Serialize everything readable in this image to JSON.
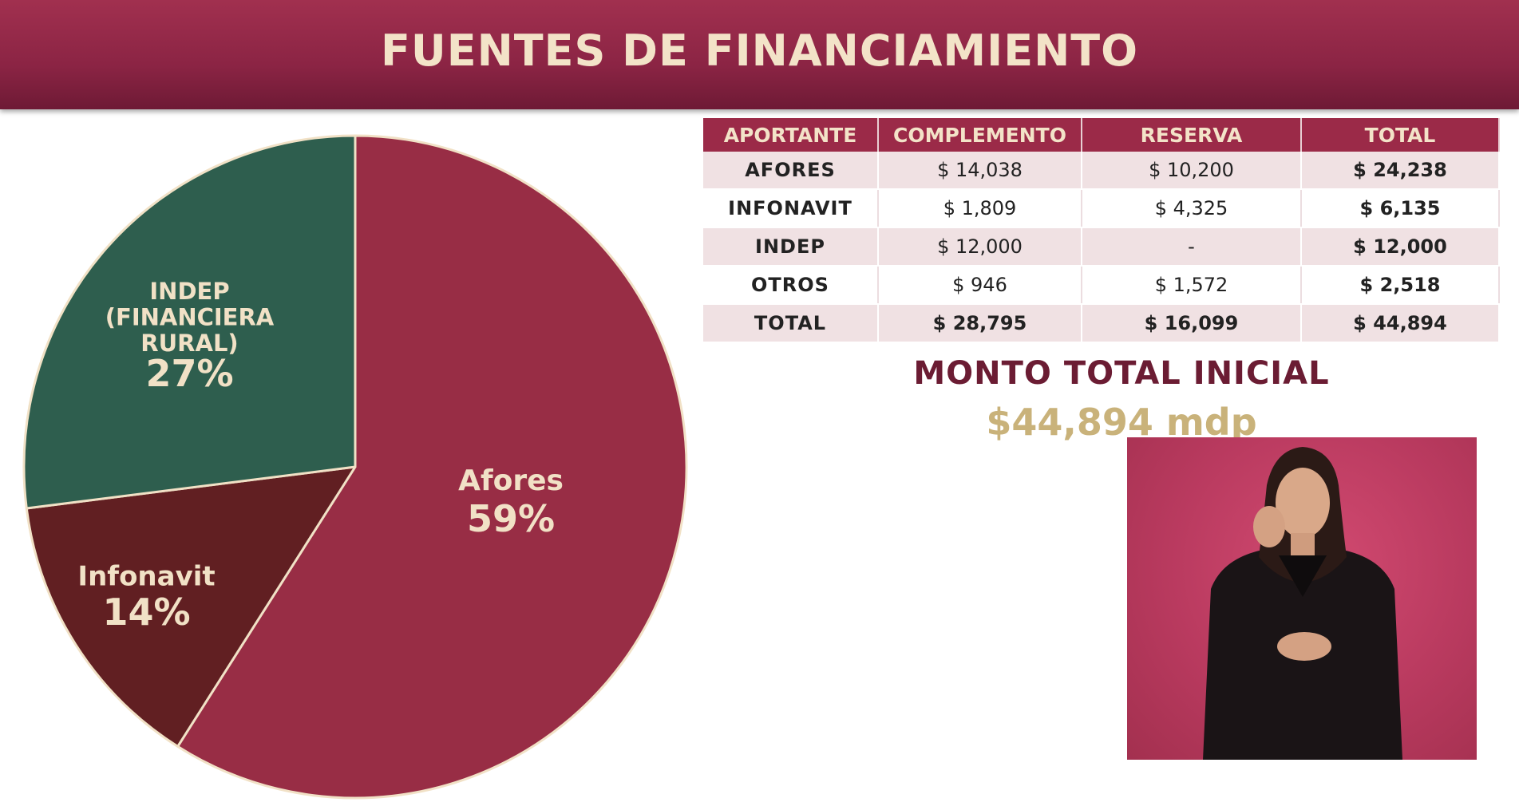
{
  "title": "FUENTES DE FINANCIAMIENTO",
  "colors": {
    "header": "#8b2444",
    "afores": "#982d45",
    "infonavit": "#611f22",
    "indep": "#2e5e4e",
    "label": "#f1e1c6",
    "monto_label": "#6b1c33",
    "monto_value": "#c9b27a"
  },
  "chart_data": {
    "type": "pie",
    "slices": [
      {
        "name": "Afores",
        "label_lines": [
          "Afores"
        ],
        "percent_label": "59%",
        "value": 59
      },
      {
        "name": "Infonavit",
        "label_lines": [
          "Infonavit"
        ],
        "percent_label": "14%",
        "value": 14
      },
      {
        "name": "INDEP (FINANCIERA RURAL)",
        "label_lines": [
          "INDEP",
          "(FINANCIERA",
          "RURAL)"
        ],
        "percent_label": "27%",
        "value": 27
      }
    ]
  },
  "table": {
    "headers": [
      "APORTANTE",
      "COMPLEMENTO",
      "RESERVA",
      "TOTAL"
    ],
    "rows": [
      [
        "AFORES",
        "$ 14,038",
        "$ 10,200",
        "$ 24,238"
      ],
      [
        "INFONAVIT",
        "$ 1,809",
        "$ 4,325",
        "$ 6,135"
      ],
      [
        "INDEP",
        "$ 12,000",
        "-",
        "$ 12,000"
      ],
      [
        "OTROS",
        "$ 946",
        "$ 1,572",
        "$ 2,518"
      ],
      [
        "TOTAL",
        "$ 28,795",
        "$ 16,099",
        "$ 44,894"
      ]
    ]
  },
  "monto": {
    "label": "MONTO TOTAL INICIAL",
    "value": "$44,894 mdp"
  }
}
